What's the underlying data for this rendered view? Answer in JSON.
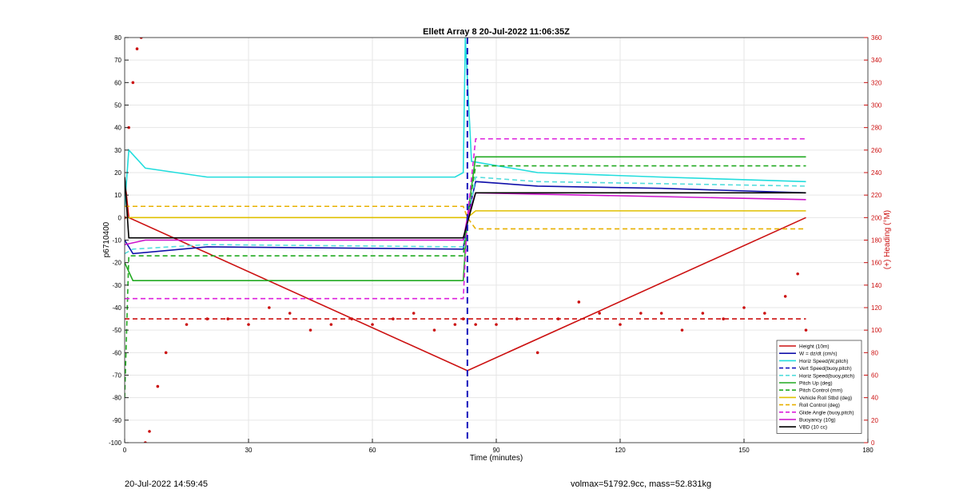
{
  "chart_data": {
    "type": "line",
    "title": "Ellett Array 8 20-Jul-2022 11:06:35Z",
    "xlabel": "Time (minutes)",
    "ylabel": "p6710400",
    "y2label": "(+) Heading (°M)",
    "xlim": [
      0,
      180
    ],
    "ylim": [
      -100,
      80
    ],
    "y2lim": [
      0,
      360
    ],
    "xticks": [
      "0",
      "30",
      "60",
      "90",
      "120",
      "150",
      "180"
    ],
    "yticks": [
      "-100",
      "-90",
      "-80",
      "-70",
      "-60",
      "-50",
      "-40",
      "-30",
      "-20",
      "-10",
      "0",
      "10",
      "20",
      "30",
      "40",
      "50",
      "60",
      "70",
      "80"
    ],
    "y2ticks": [
      "0",
      "20",
      "40",
      "60",
      "80",
      "100",
      "120",
      "140",
      "160",
      "180",
      "200",
      "220",
      "240",
      "260",
      "280",
      "300",
      "320",
      "340",
      "360"
    ],
    "grid": true,
    "legend_position": "bottom-right",
    "vertical_line_x": 83,
    "series": [
      {
        "name": "Height (10m)",
        "color": "#cc1111",
        "style": "solid",
        "x": [
          0,
          1,
          83,
          165
        ],
        "y": [
          18,
          0,
          -68,
          0
        ]
      },
      {
        "name": "W = dz/dt (cm/s)",
        "color": "#1010aa",
        "style": "solid",
        "x": [
          0,
          2,
          20,
          50,
          82,
          83,
          85,
          100,
          130,
          165
        ],
        "y": [
          -10,
          -16,
          -13,
          -13.5,
          -14,
          0,
          16,
          14,
          13,
          11
        ]
      },
      {
        "name": "Horiz Speed(W,pitch)",
        "color": "#22dddd",
        "style": "solid",
        "x": [
          0,
          1,
          5,
          20,
          40,
          60,
          80,
          82,
          82.5,
          84,
          100,
          130,
          165
        ],
        "y": [
          5,
          30,
          22,
          18,
          18,
          18,
          18,
          20,
          80,
          25,
          20,
          18,
          16
        ]
      },
      {
        "name": "Vert Speed(buoy,pitch)",
        "color": "#1515bb",
        "style": "dash",
        "x": [],
        "y": []
      },
      {
        "name": "Horiz Speed(buoy,pitch)",
        "color": "#55dddd",
        "style": "dash",
        "x": [
          0,
          2,
          20,
          82,
          85,
          100,
          165
        ],
        "y": [
          -16,
          -14,
          -12,
          -13,
          18,
          16,
          14
        ]
      },
      {
        "name": "Pitch Up (deg)",
        "color": "#22aa22",
        "style": "solid",
        "x": [
          0,
          2,
          82,
          83,
          85,
          120,
          165
        ],
        "y": [
          -20,
          -28,
          -28,
          0,
          27,
          27,
          27
        ]
      },
      {
        "name": "Pitch Control (mm)",
        "color": "#22aa22",
        "style": "dash",
        "x": [
          0,
          1,
          82,
          83,
          85,
          165
        ],
        "y": [
          -80,
          -17,
          -17,
          0,
          23,
          23
        ]
      },
      {
        "name": "Vehicle Roll Stbd (deg)",
        "color": "#e0c000",
        "style": "solid",
        "x": [
          0,
          2,
          82,
          83,
          85,
          165
        ],
        "y": [
          0,
          0,
          0,
          0,
          3,
          3
        ]
      },
      {
        "name": "Roll Control (deg)",
        "color": "#e8b000",
        "style": "dash",
        "x": [
          0,
          2,
          82,
          83,
          85,
          165
        ],
        "y": [
          5,
          5,
          5,
          0,
          -5,
          -5
        ]
      },
      {
        "name": "Glide Angle (buoy,pitch)",
        "color": "#dd22dd",
        "style": "dash",
        "x": [
          0,
          2,
          82,
          83,
          85,
          165
        ],
        "y": [
          -36,
          -36,
          -36,
          0,
          35,
          35
        ]
      },
      {
        "name": "Buoyancy (10g)",
        "color": "#cc11cc",
        "style": "solid",
        "x": [
          0,
          5,
          82,
          83,
          85,
          165
        ],
        "y": [
          -12,
          -10,
          -10,
          0,
          11,
          8
        ]
      },
      {
        "name": "VBD (10 cc)",
        "color": "#000000",
        "style": "solid",
        "x": [
          0,
          1,
          82,
          85,
          165
        ],
        "y": [
          18,
          -9,
          -9,
          11,
          11
        ]
      },
      {
        "name": "",
        "color": "#cc1111",
        "style": "dash-hline",
        "x": [
          0,
          165
        ],
        "y": [
          -45,
          -45
        ]
      },
      {
        "name": "",
        "color": "#cc1111",
        "style": "dots",
        "axis": "right",
        "x": [
          0,
          1,
          2,
          3,
          4,
          5,
          6,
          8,
          10,
          15,
          20,
          25,
          30,
          35,
          40,
          45,
          50,
          55,
          60,
          65,
          70,
          75,
          80,
          82,
          85,
          90,
          95,
          100,
          105,
          110,
          115,
          120,
          125,
          130,
          135,
          140,
          145,
          150,
          155,
          160,
          163,
          165
        ],
        "y": [
          200,
          280,
          320,
          350,
          360,
          0,
          10,
          50,
          80,
          105,
          110,
          110,
          105,
          120,
          115,
          100,
          105,
          110,
          105,
          110,
          115,
          100,
          105,
          110,
          105,
          105,
          110,
          80,
          110,
          125,
          115,
          105,
          115,
          115,
          100,
          115,
          110,
          120,
          115,
          130,
          150,
          100
        ]
      }
    ]
  },
  "footer": {
    "left": "20-Jul-2022 14:59:45",
    "right": "volmax=51792.9cc, mass=52.831kg"
  }
}
